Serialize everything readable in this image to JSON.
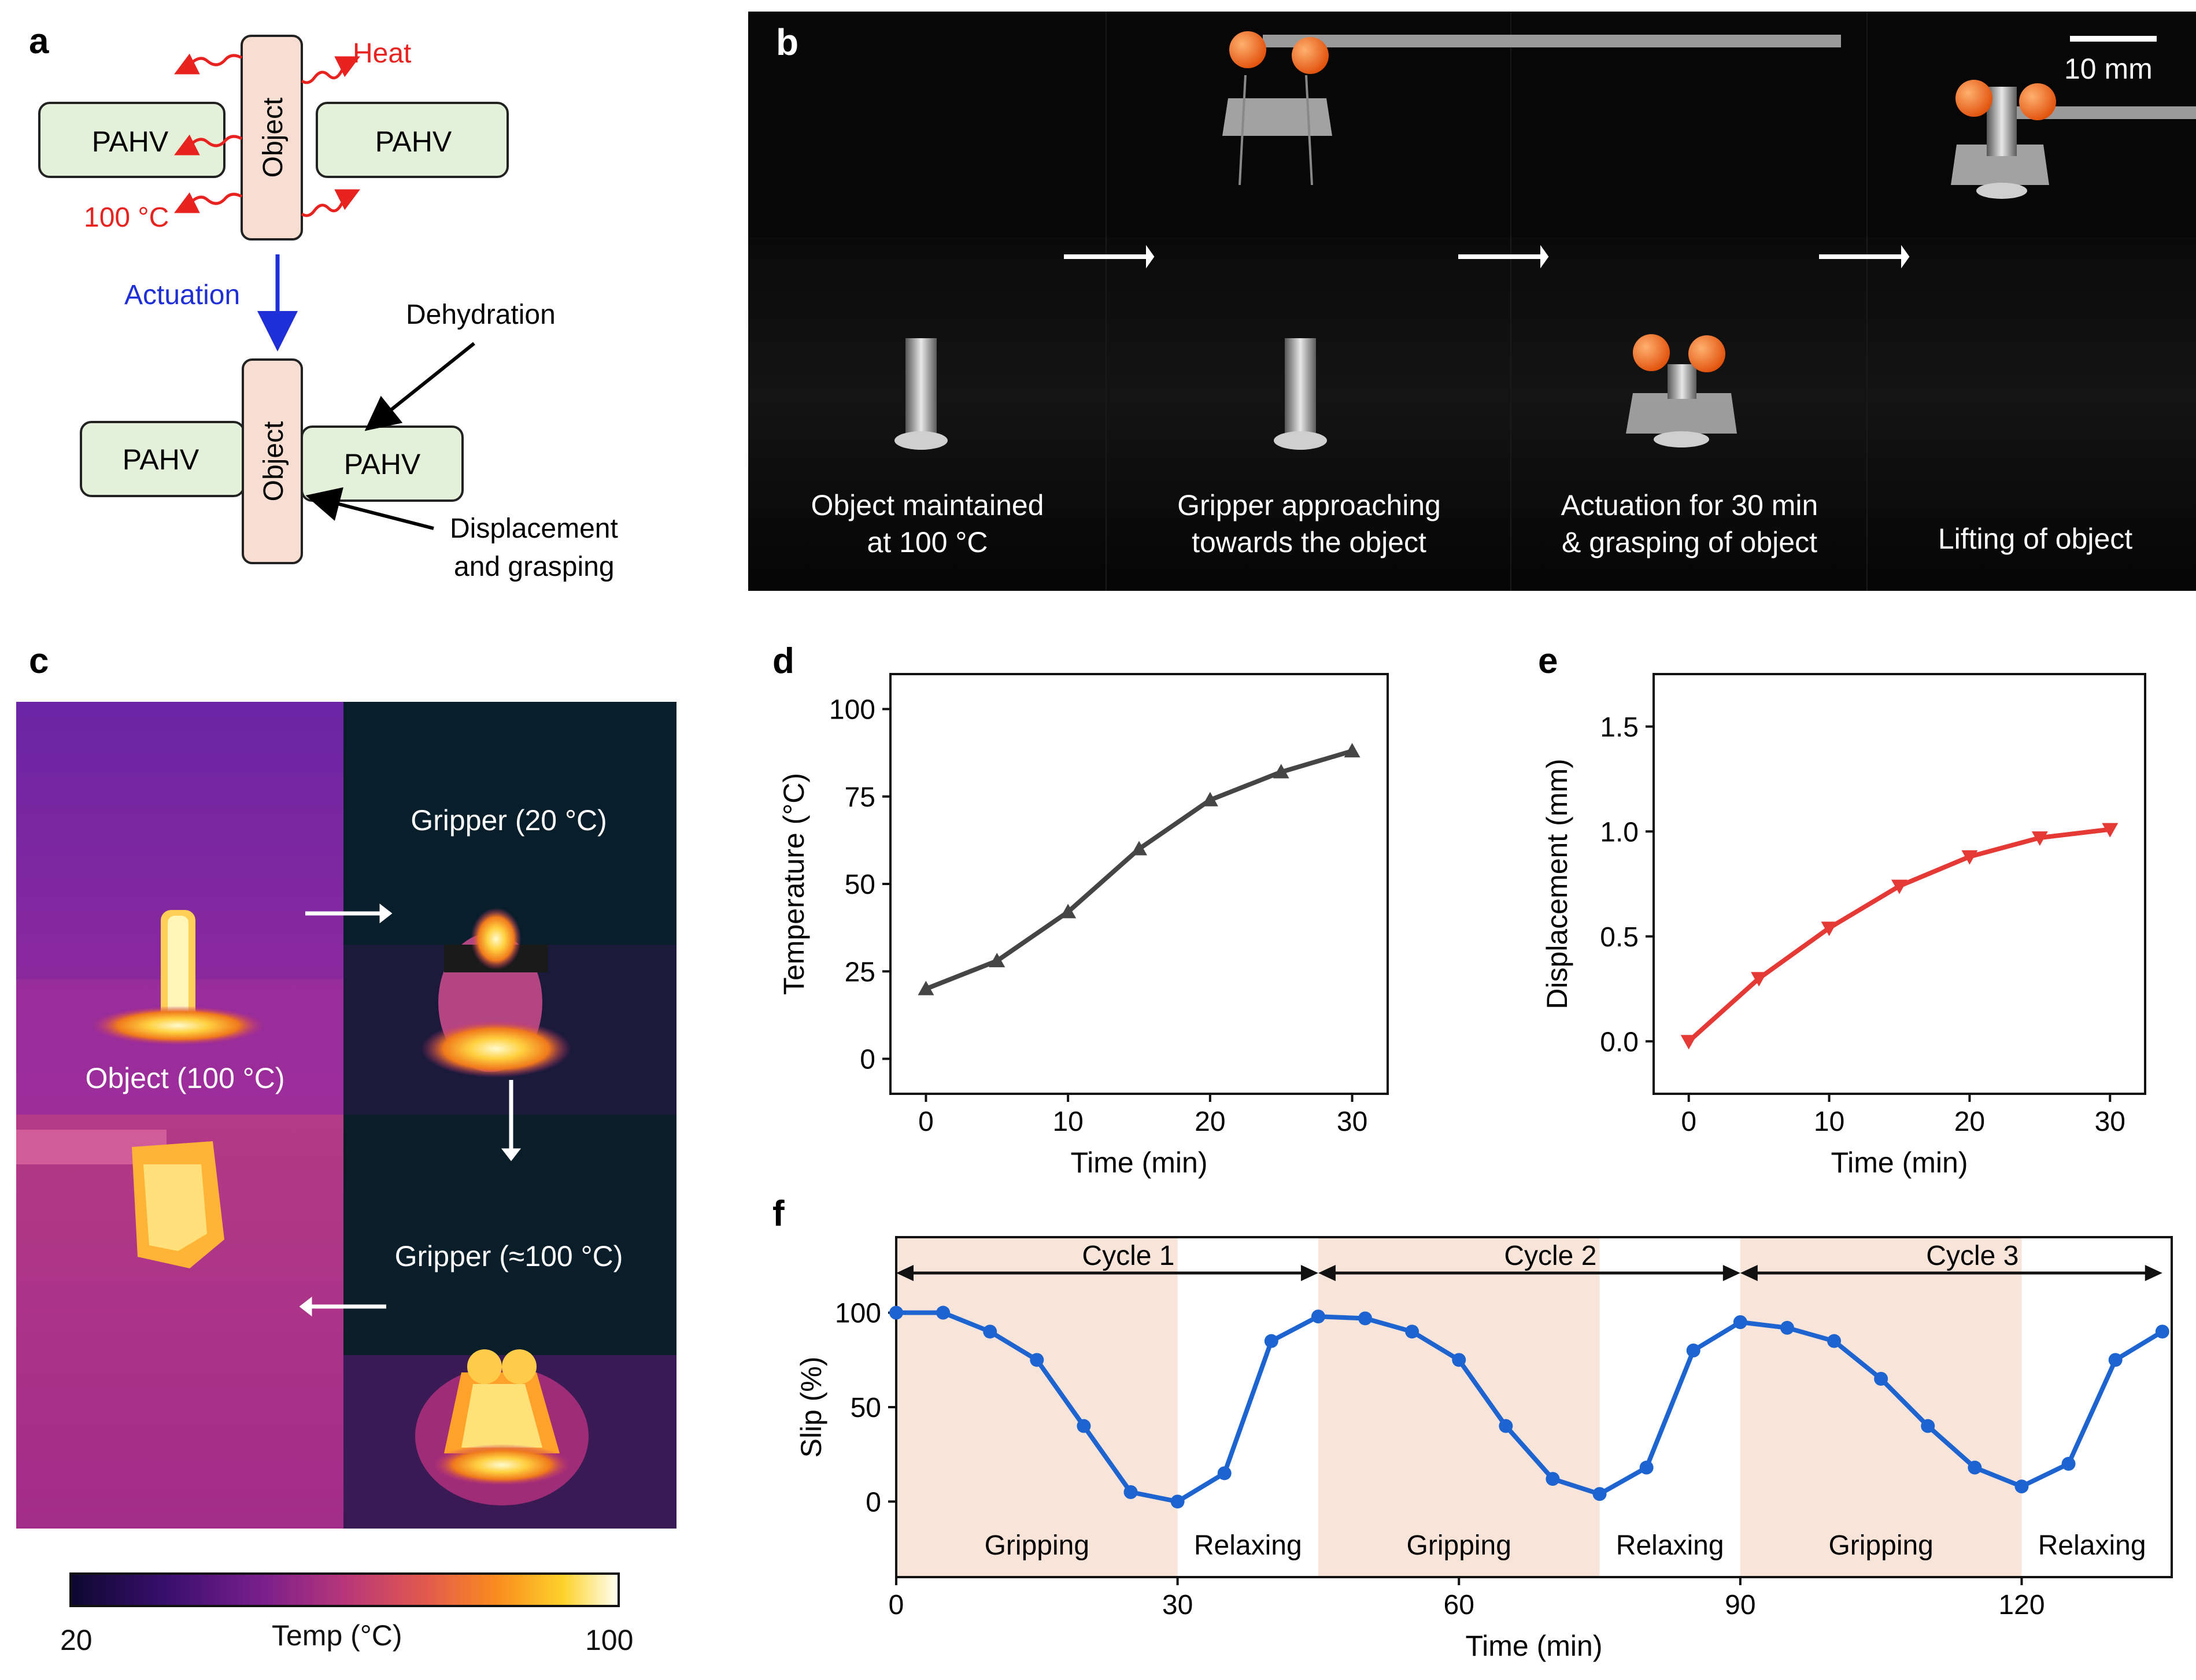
{
  "panels": {
    "a": {
      "letter": "a",
      "top_box_left": "PAHV",
      "top_box_right": "PAHV",
      "top_object": "Object",
      "heat_label": "Heat",
      "temp_label": "100 °C",
      "actuation_label": "Actuation",
      "bottom_box_left": "PAHV",
      "bottom_box_right": "PAHV",
      "bottom_object": "Object",
      "dehydration_label": "Dehydration",
      "displacement_label_1": "Displacement",
      "displacement_label_2": "and grasping",
      "colors": {
        "pahv_fill": "#e3f0da",
        "object_fill": "#f7ddd2",
        "heat": "#e8231f",
        "actuation": "#1f2fd8"
      }
    },
    "b": {
      "letter": "b",
      "scale_bar": "10 mm",
      "captions": [
        [
          "Object maintained",
          "at 100 °C"
        ],
        [
          "Gripper approaching",
          "towards the object"
        ],
        [
          "Actuation for 30 min",
          "& grasping of object"
        ],
        [
          "Lifting of object"
        ]
      ]
    },
    "c": {
      "letter": "c",
      "labels": {
        "object": "Object (100 °C)",
        "gripper_cold": "Gripper (20 °C)",
        "gripper_hot": "Gripper (≈100 °C)"
      },
      "colorbar": {
        "min": "20",
        "max": "100",
        "label": "Temp (°C)"
      }
    },
    "d": {
      "letter": "d"
    },
    "e": {
      "letter": "e"
    },
    "f": {
      "letter": "f"
    }
  },
  "chart_data": [
    {
      "id": "d",
      "type": "line",
      "x": [
        0,
        5,
        10,
        15,
        20,
        25,
        30
      ],
      "series": [
        {
          "values": [
            20,
            28,
            42,
            60,
            74,
            82,
            88
          ],
          "color": "#454545",
          "marker": "triangle-up"
        }
      ],
      "xlabel": "Time (min)",
      "ylabel": "Temperature (°C)",
      "xlim": [
        -2.5,
        32.5
      ],
      "ylim": [
        -10,
        110
      ],
      "xticks": [
        0,
        10,
        20,
        30
      ],
      "yticks": [
        0,
        25,
        50,
        75,
        100
      ],
      "grid": false
    },
    {
      "id": "e",
      "type": "line",
      "x": [
        0,
        5,
        10,
        15,
        20,
        25,
        30
      ],
      "series": [
        {
          "values": [
            0.0,
            0.3,
            0.54,
            0.74,
            0.88,
            0.97,
            1.01
          ],
          "color": "#e53935",
          "marker": "triangle-down"
        }
      ],
      "xlabel": "Time (min)",
      "ylabel": "Displacement (mm)",
      "xlim": [
        -2.5,
        32.5
      ],
      "ylim": [
        -0.25,
        1.75
      ],
      "xticks": [
        0,
        10,
        20,
        30
      ],
      "yticks": [
        0.0,
        0.5,
        1.0,
        1.5
      ],
      "grid": false
    },
    {
      "id": "f",
      "type": "line",
      "x": [
        0,
        5,
        10,
        15,
        20,
        25,
        30,
        35,
        40,
        45,
        50,
        55,
        60,
        65,
        70,
        75,
        80,
        85,
        90,
        95,
        100,
        105,
        110,
        115,
        120,
        125,
        130,
        135
      ],
      "series": [
        {
          "values": [
            100,
            100,
            90,
            75,
            40,
            5,
            0,
            15,
            85,
            98,
            97,
            90,
            75,
            40,
            12,
            4,
            18,
            80,
            95,
            92,
            85,
            65,
            40,
            18,
            8,
            20,
            75,
            90
          ],
          "color": "#1e64d0",
          "marker": "circle"
        }
      ],
      "xlabel": "Time (min)",
      "ylabel": "Slip (%)",
      "xlim": [
        0,
        136
      ],
      "ylim": [
        -40,
        140
      ],
      "xticks": [
        0,
        30,
        60,
        90,
        120
      ],
      "yticks": [
        0,
        50,
        100
      ],
      "cycles": [
        {
          "label": "Cycle 1",
          "start": 0,
          "end": 45
        },
        {
          "label": "Cycle 2",
          "start": 45,
          "end": 90
        },
        {
          "label": "Cycle 3",
          "start": 90,
          "end": 135
        }
      ],
      "phases": [
        {
          "label": "Gripping",
          "start": 0,
          "end": 30,
          "shaded": true
        },
        {
          "label": "Relaxing",
          "start": 30,
          "end": 45,
          "shaded": false
        },
        {
          "label": "Gripping",
          "start": 45,
          "end": 75,
          "shaded": true
        },
        {
          "label": "Relaxing",
          "start": 75,
          "end": 90,
          "shaded": false
        },
        {
          "label": "Gripping",
          "start": 90,
          "end": 120,
          "shaded": true
        },
        {
          "label": "Relaxing",
          "start": 120,
          "end": 135,
          "shaded": false
        }
      ],
      "shade_color": "#f9e4d9",
      "grid": false
    }
  ]
}
